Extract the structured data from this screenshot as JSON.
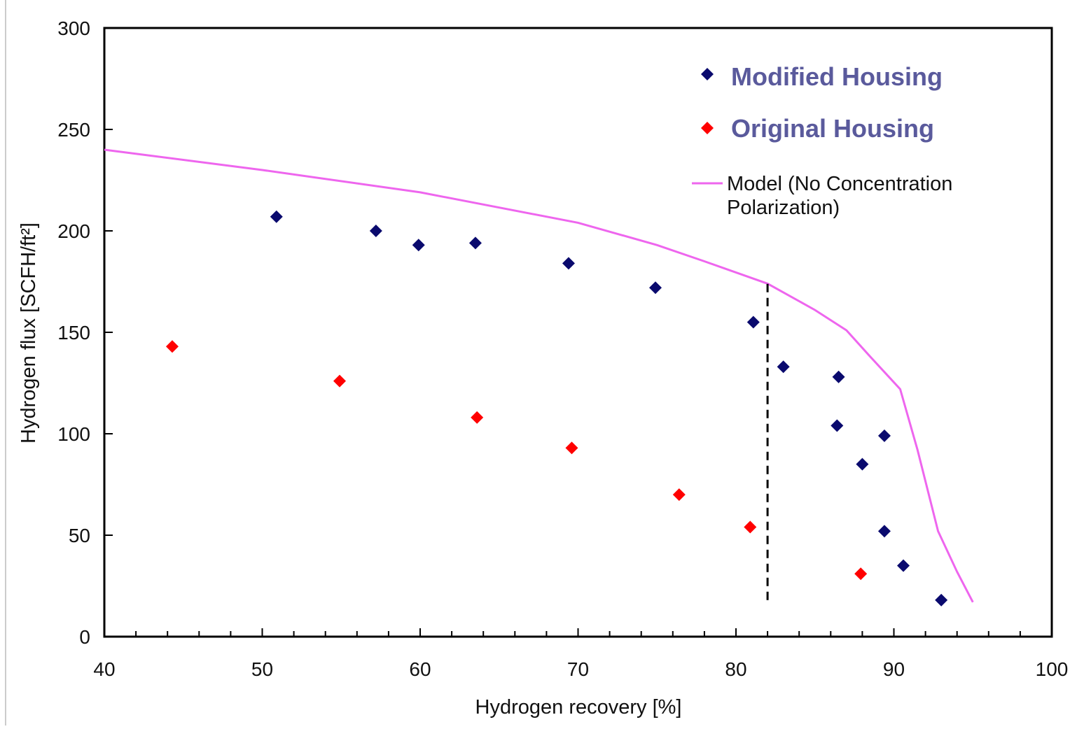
{
  "chart_data": {
    "type": "scatter",
    "xlabel": "Hydrogen recovery [%]",
    "ylabel": "Hydrogen flux [SCFH/ft²]",
    "xlim": [
      40,
      100
    ],
    "ylim": [
      0,
      300
    ],
    "xticks": [
      "40",
      "50",
      "60",
      "70",
      "80",
      "90",
      "100"
    ],
    "yticks": [
      "0",
      "50",
      "100",
      "150",
      "200",
      "250",
      "300"
    ],
    "grid": false,
    "legend_position": "top-right",
    "series": [
      {
        "name": "Modified Housing",
        "kind": "scatter",
        "marker": "diamond",
        "color": "#0a0a6e",
        "points": [
          [
            50.9,
            207
          ],
          [
            57.2,
            200
          ],
          [
            59.9,
            193
          ],
          [
            63.5,
            194
          ],
          [
            69.4,
            184
          ],
          [
            74.9,
            172
          ],
          [
            81.1,
            155
          ],
          [
            83.0,
            133
          ],
          [
            86.5,
            128
          ],
          [
            86.4,
            104
          ],
          [
            89.4,
            99
          ],
          [
            88.0,
            85
          ],
          [
            89.4,
            52
          ],
          [
            90.6,
            35
          ],
          [
            93.0,
            18
          ]
        ]
      },
      {
        "name": "Original Housing",
        "kind": "scatter",
        "marker": "diamond",
        "color": "#ff0000",
        "points": [
          [
            44.3,
            143
          ],
          [
            54.9,
            126
          ],
          [
            63.6,
            108
          ],
          [
            69.6,
            93
          ],
          [
            76.4,
            70
          ],
          [
            80.9,
            54
          ],
          [
            87.9,
            31
          ]
        ]
      },
      {
        "name": "Model (No Concentration Polarization)",
        "kind": "line",
        "color": "#ee66ee",
        "points": [
          [
            40,
            240
          ],
          [
            50,
            230
          ],
          [
            60,
            219
          ],
          [
            70,
            204
          ],
          [
            75,
            193
          ],
          [
            78,
            185
          ],
          [
            82,
            174
          ],
          [
            85,
            161
          ],
          [
            87,
            151
          ],
          [
            88.5,
            138
          ],
          [
            90.4,
            122
          ],
          [
            91.5,
            92
          ],
          [
            92.8,
            52
          ],
          [
            94.0,
            32
          ],
          [
            95.0,
            17
          ]
        ]
      }
    ],
    "annotations": [
      {
        "kind": "vertical-dashed-line",
        "x": 82,
        "y_from": 18,
        "y_to": 175,
        "color": "#000000"
      }
    ],
    "legend": {
      "entries": [
        {
          "label": "Modified Housing",
          "marker": "diamond",
          "color": "#0a0a6e"
        },
        {
          "label": "Original Housing",
          "marker": "diamond",
          "color": "#ff0000"
        },
        {
          "label_lines": [
            "Model (No Concentration",
            "Polarization)"
          ],
          "marker": "line",
          "color": "#ee66ee"
        }
      ]
    }
  }
}
